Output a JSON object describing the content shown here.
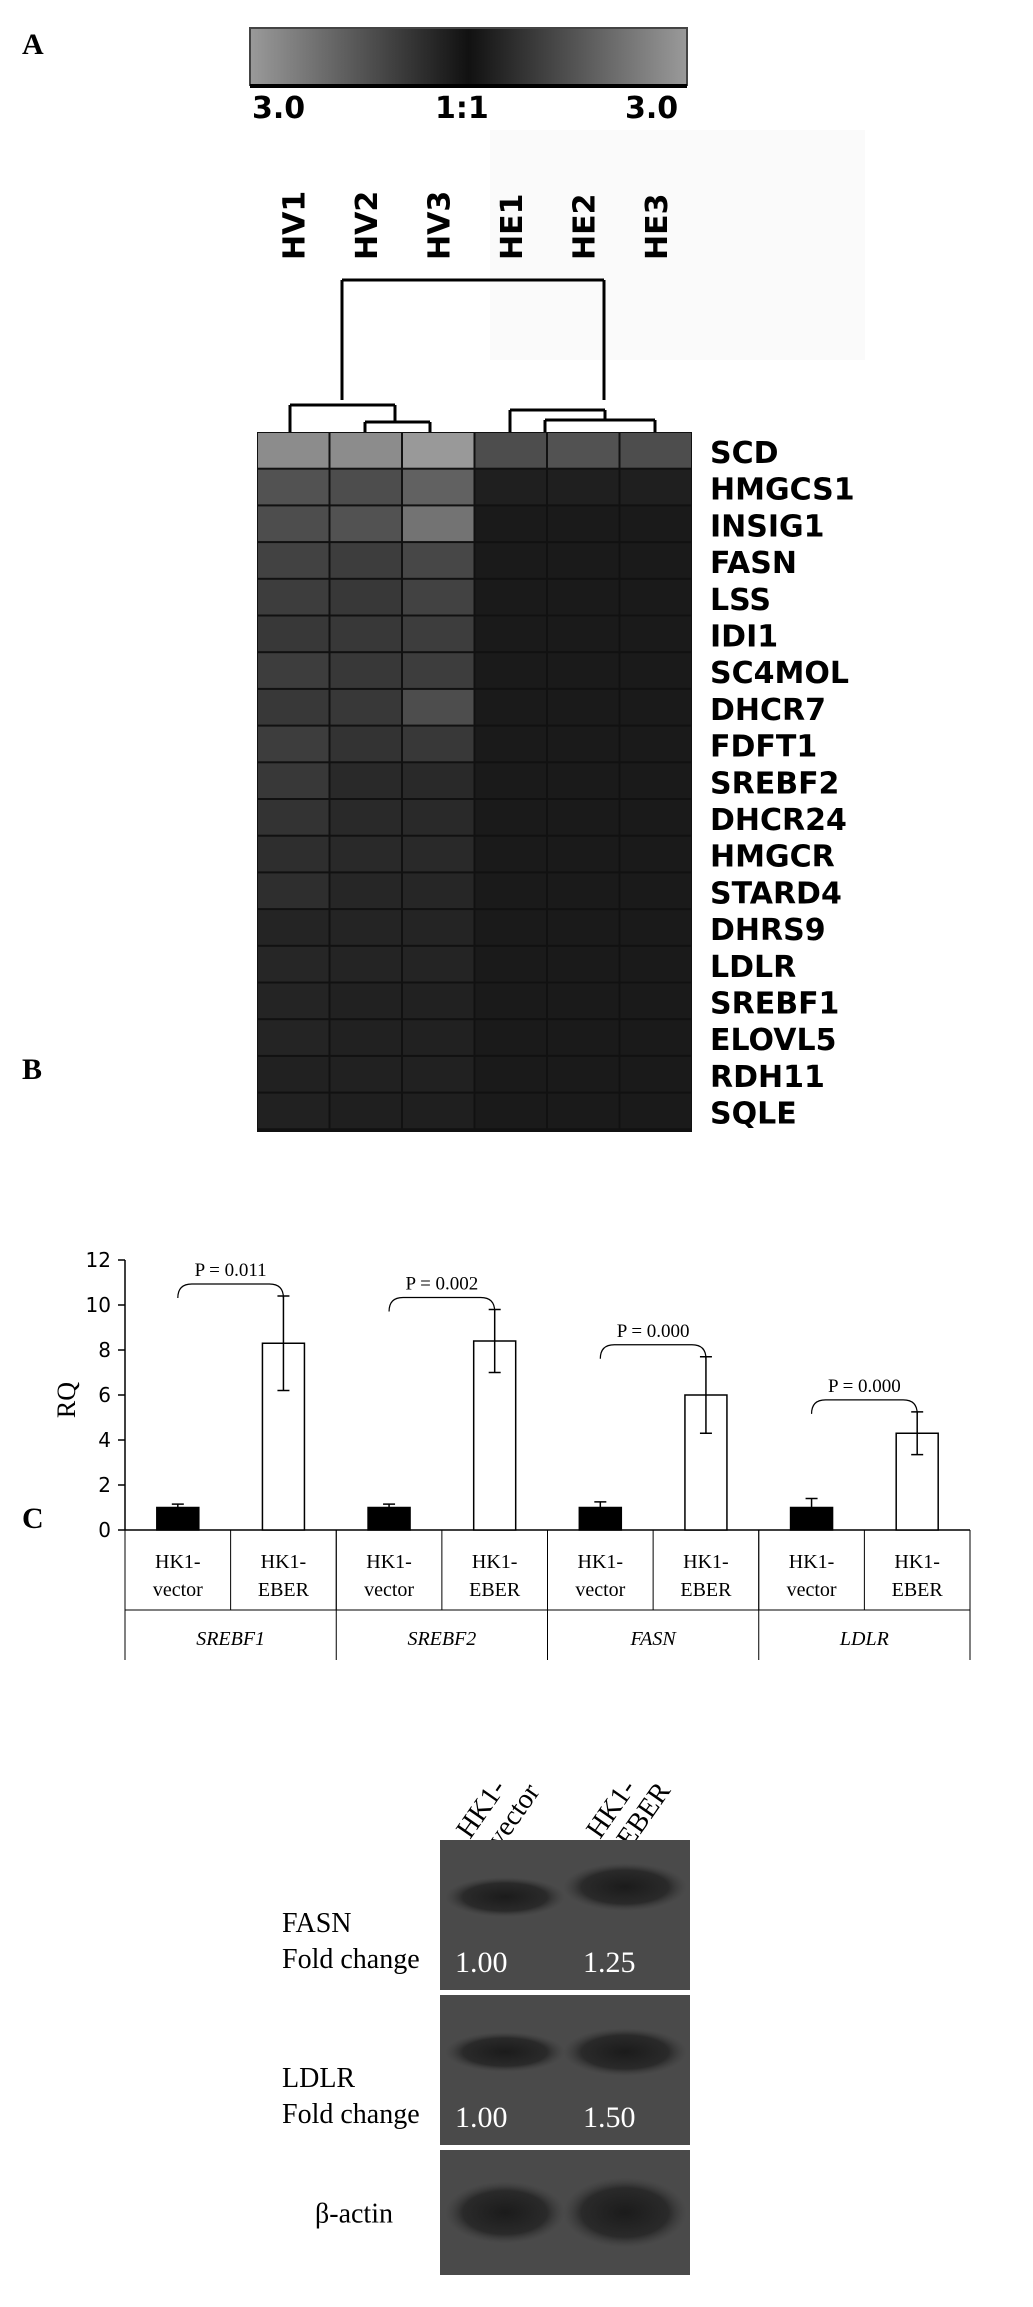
{
  "panels": {
    "a": "A",
    "b": "B",
    "c": "C"
  },
  "scale_bar": {
    "left": "3.0",
    "center": "1:1",
    "right": "3.0"
  },
  "heatmap": {
    "samples": [
      "HV1",
      "HV2",
      "HV3",
      "HE1",
      "HE2",
      "HE3"
    ],
    "genes": [
      "SCD",
      "HMGCS1",
      "INSIG1",
      "FASN",
      "LSS",
      "IDI1",
      "SC4MOL",
      "DHCR7",
      "FDFT1",
      "SREBF2",
      "DHCR24",
      "HMGCR",
      "STARD4",
      "DHRS9",
      "LDLR",
      "SREBF1",
      "ELOVL5",
      "RDH11",
      "SQLE"
    ],
    "intensity": [
      [
        0.55,
        0.55,
        0.6,
        0.3,
        0.32,
        0.3
      ],
      [
        0.32,
        0.3,
        0.38,
        0.12,
        0.12,
        0.12
      ],
      [
        0.3,
        0.32,
        0.45,
        0.1,
        0.1,
        0.1
      ],
      [
        0.26,
        0.24,
        0.28,
        0.1,
        0.1,
        0.1
      ],
      [
        0.24,
        0.22,
        0.26,
        0.1,
        0.1,
        0.1
      ],
      [
        0.22,
        0.22,
        0.24,
        0.1,
        0.1,
        0.1
      ],
      [
        0.24,
        0.22,
        0.24,
        0.1,
        0.1,
        0.1
      ],
      [
        0.22,
        0.22,
        0.3,
        0.1,
        0.1,
        0.1
      ],
      [
        0.24,
        0.2,
        0.22,
        0.1,
        0.1,
        0.1
      ],
      [
        0.22,
        0.16,
        0.16,
        0.1,
        0.1,
        0.1
      ],
      [
        0.2,
        0.16,
        0.16,
        0.1,
        0.1,
        0.1
      ],
      [
        0.18,
        0.16,
        0.16,
        0.1,
        0.1,
        0.1
      ],
      [
        0.18,
        0.15,
        0.15,
        0.1,
        0.1,
        0.1
      ],
      [
        0.14,
        0.14,
        0.14,
        0.1,
        0.1,
        0.1
      ],
      [
        0.15,
        0.14,
        0.14,
        0.1,
        0.1,
        0.1
      ],
      [
        0.14,
        0.13,
        0.13,
        0.1,
        0.1,
        0.1
      ],
      [
        0.14,
        0.13,
        0.13,
        0.1,
        0.1,
        0.1
      ],
      [
        0.13,
        0.13,
        0.13,
        0.1,
        0.1,
        0.1
      ],
      [
        0.13,
        0.12,
        0.12,
        0.1,
        0.1,
        0.1
      ]
    ]
  },
  "chart_data": {
    "type": "bar",
    "ylabel": "RQ",
    "ylim": [
      0,
      12
    ],
    "yticks": [
      0,
      2,
      4,
      6,
      8,
      10,
      12
    ],
    "groups": [
      {
        "gene": "SREBF1",
        "p": "P = 0.011",
        "bars": [
          {
            "l1": "HK1-",
            "l2": "vector",
            "value": 1.0,
            "err": 0.15,
            "fill": "#000000"
          },
          {
            "l1": "HK1-",
            "l2": "EBER",
            "value": 8.3,
            "err": 2.1,
            "fill": "#ffffff"
          }
        ]
      },
      {
        "gene": "SREBF2",
        "p": "P = 0.002",
        "bars": [
          {
            "l1": "HK1-",
            "l2": "vector",
            "value": 1.0,
            "err": 0.15,
            "fill": "#000000"
          },
          {
            "l1": "HK1-",
            "l2": "EBER",
            "value": 8.4,
            "err": 1.4,
            "fill": "#ffffff"
          }
        ]
      },
      {
        "gene": "FASN",
        "p": "P = 0.000",
        "bars": [
          {
            "l1": "HK1-",
            "l2": "vector",
            "value": 1.0,
            "err": 0.25,
            "fill": "#000000"
          },
          {
            "l1": "HK1-",
            "l2": "EBER",
            "value": 6.0,
            "err": 1.7,
            "fill": "#ffffff"
          }
        ]
      },
      {
        "gene": "LDLR",
        "p": "P = 0.000",
        "bars": [
          {
            "l1": "HK1-",
            "l2": "vector",
            "value": 1.0,
            "err": 0.4,
            "fill": "#000000"
          },
          {
            "l1": "HK1-",
            "l2": "EBER",
            "value": 4.3,
            "err": 0.95,
            "fill": "#ffffff"
          }
        ]
      }
    ]
  },
  "western": {
    "lanes": [
      {
        "l1": "HK1-",
        "l2": "vector"
      },
      {
        "l1": "HK1-",
        "l2": "EBER"
      }
    ],
    "blots": [
      {
        "name": "FASN",
        "sub": "Fold change",
        "values": [
          "1.00",
          "1.25"
        ]
      },
      {
        "name": "LDLR",
        "sub": "Fold change",
        "values": [
          "1.00",
          "1.50"
        ]
      },
      {
        "name": "β-actin",
        "sub": "",
        "values": []
      }
    ]
  }
}
